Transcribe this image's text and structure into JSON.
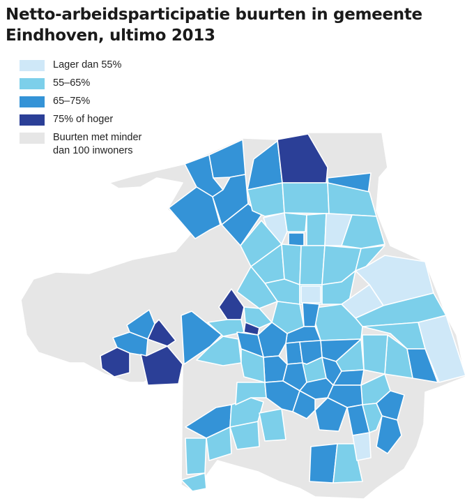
{
  "title": {
    "line1": "Netto-arbeidsparticipatie buurten in gemeente",
    "line2": "Eindhoven, ultimo 2013"
  },
  "legend": [
    {
      "key": "c1",
      "label_lines": [
        "Lager dan 55%"
      ],
      "color": "#cfe8f8"
    },
    {
      "key": "c2",
      "label_lines": [
        "55–65%"
      ],
      "color": "#7ccfea"
    },
    {
      "key": "c3",
      "label_lines": [
        "65–75%"
      ],
      "color": "#3493d7"
    },
    {
      "key": "c4",
      "label_lines": [
        "75% of hoger"
      ],
      "color": "#2b3f97"
    },
    {
      "key": "gray",
      "label_lines": [
        "Buurten met minder",
        "dan 100 inwoners"
      ],
      "color": "#e6e6e6"
    }
  ]
}
